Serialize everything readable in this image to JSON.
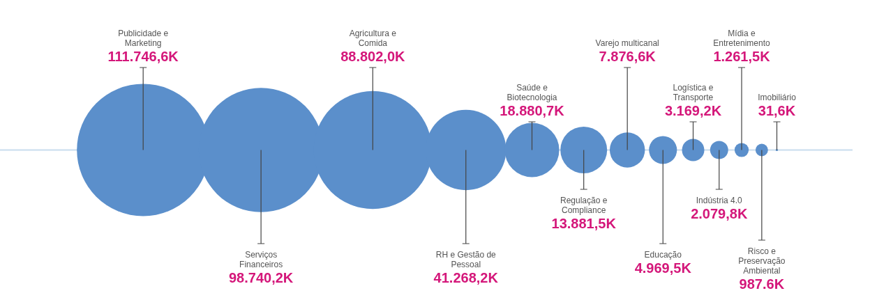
{
  "chart_data": {
    "type": "other",
    "color": "#5b8fcb",
    "categories": [
      "Publicidade e Marketing",
      "Serviços Financeiros",
      "Agricultura e Comida",
      "RH e Gestão de Pessoal",
      "Saúde e Biotecnologia",
      "Regulação e Compliance",
      "Varejo multicanal",
      "Educação",
      "Logística e Transporte",
      "Indústria 4.0",
      "Mídia e Entretenimento",
      "Risco e Preservação Ambiental",
      "Imobiliário"
    ],
    "values": [
      111746.6,
      98740.2,
      88802.0,
      41268.2,
      18880.7,
      13881.5,
      7876.6,
      4969.5,
      3169.2,
      2079.8,
      1261.5,
      987.6,
      31.6
    ],
    "value_labels": [
      "111.746,6K",
      "98.740,2K",
      "88.802,0K",
      "41.268,2K",
      "18.880,7K",
      "13.881,5K",
      "7.876,6K",
      "4.969,5K",
      "3.169,2K",
      "2.079,8K",
      "1.261,5K",
      "987.6K",
      "31,6K"
    ]
  }
}
